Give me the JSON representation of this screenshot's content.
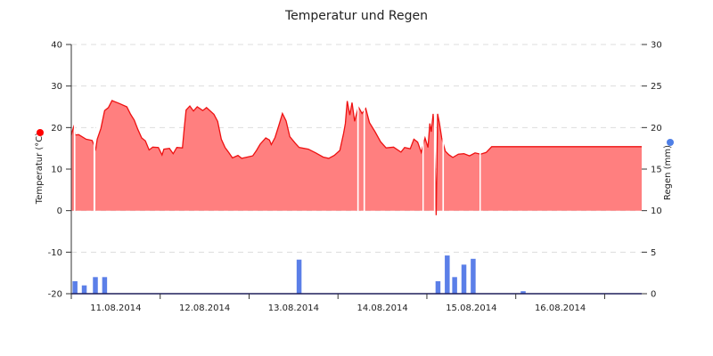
{
  "chart_data": {
    "type": "line+bar",
    "title": "Temperatur und Regen",
    "x_ticks": [
      "11.08.2014",
      "12.08.2014",
      "13.08.2014",
      "14.08.2014",
      "15.08.2014",
      "16.08.2014"
    ],
    "x_range_hours": [
      0,
      154
    ],
    "y_left": {
      "label": "Temperatur (°C)",
      "ticks": [
        "40",
        "30",
        "20",
        "10",
        "0",
        "-10",
        "-20"
      ],
      "range": [
        -20,
        40
      ],
      "marker_color": "#ff0000"
    },
    "y_right": {
      "label": "Regen (mm)",
      "ticks": [
        "30",
        "25",
        "20",
        "15",
        "10",
        "5",
        "0"
      ],
      "range": [
        0,
        30
      ],
      "marker_color": "#4f7fe6"
    },
    "grid": "horizontal-dashed",
    "series": [
      {
        "type": "area",
        "color": "#ee1111",
        "fill": "#ff7f7f",
        "points": [
          [
            0,
            18.2
          ],
          [
            0.4,
            19.5
          ],
          [
            0.8,
            20.6
          ],
          [
            1.0,
            18.2
          ],
          [
            2.0,
            18.3
          ],
          [
            4.0,
            17.2
          ],
          [
            5.6,
            16.9
          ],
          [
            6.6,
            14.8
          ],
          [
            7.0,
            17.2
          ],
          [
            8.0,
            19.8
          ],
          [
            9.0,
            24.1
          ],
          [
            10.0,
            24.8
          ],
          [
            11.0,
            26.5
          ],
          [
            13.0,
            25.8
          ],
          [
            15.0,
            25.0
          ],
          [
            16.0,
            23.2
          ],
          [
            17.0,
            21.8
          ],
          [
            18.0,
            19.5
          ],
          [
            19.0,
            17.5
          ],
          [
            20.0,
            16.8
          ],
          [
            21.0,
            14.6
          ],
          [
            22.0,
            15.3
          ],
          [
            23.5,
            15.2
          ],
          [
            24.5,
            13.4
          ],
          [
            25.0,
            14.8
          ],
          [
            26.5,
            15.0
          ],
          [
            27.5,
            13.7
          ],
          [
            28.5,
            15.2
          ],
          [
            30.0,
            15.1
          ],
          [
            30.5,
            20.0
          ],
          [
            31.0,
            24.2
          ],
          [
            32.0,
            25.2
          ],
          [
            33.0,
            24.0
          ],
          [
            34.0,
            25.0
          ],
          [
            35.5,
            24.1
          ],
          [
            36.5,
            24.8
          ],
          [
            38.5,
            23.2
          ],
          [
            39.5,
            21.5
          ],
          [
            40.5,
            17.2
          ],
          [
            41.5,
            15.2
          ],
          [
            42.5,
            14.0
          ],
          [
            43.5,
            12.7
          ],
          [
            45.0,
            13.3
          ],
          [
            46.0,
            12.6
          ],
          [
            47.5,
            12.9
          ],
          [
            49.0,
            13.2
          ],
          [
            50.0,
            14.5
          ],
          [
            51.0,
            16.0
          ],
          [
            52.5,
            17.5
          ],
          [
            53.5,
            17.0
          ],
          [
            54.0,
            15.9
          ],
          [
            55.0,
            17.6
          ],
          [
            56.0,
            20.4
          ],
          [
            57.0,
            23.4
          ],
          [
            58.0,
            21.6
          ],
          [
            59.0,
            17.8
          ],
          [
            60.5,
            16.2
          ],
          [
            61.5,
            15.2
          ],
          [
            64.0,
            14.8
          ],
          [
            66.0,
            13.9
          ],
          [
            68.0,
            12.9
          ],
          [
            69.5,
            12.6
          ],
          [
            71.0,
            13.3
          ],
          [
            72.5,
            14.5
          ],
          [
            73.5,
            18.6
          ],
          [
            74.0,
            21.0
          ],
          [
            74.5,
            26.4
          ],
          [
            75.2,
            23.0
          ],
          [
            75.8,
            26.0
          ],
          [
            76.5,
            21.5
          ],
          [
            77.5,
            25.0
          ],
          [
            78.5,
            23.4
          ],
          [
            79.5,
            24.6
          ],
          [
            80.5,
            21.2
          ],
          [
            82.0,
            19.0
          ],
          [
            83.5,
            16.6
          ],
          [
            85.0,
            15.1
          ],
          [
            87.0,
            15.3
          ],
          [
            89.0,
            14.1
          ],
          [
            90.0,
            15.2
          ],
          [
            91.5,
            14.9
          ],
          [
            92.5,
            17.2
          ],
          [
            93.5,
            16.5
          ],
          [
            94.5,
            14.0
          ],
          [
            95.5,
            17.5
          ],
          [
            96.3,
            15.2
          ],
          [
            96.8,
            21.0
          ],
          [
            97.2,
            19.0
          ],
          [
            97.7,
            23.3
          ],
          [
            98.0,
            20.0
          ],
          [
            98.5,
            -1.1
          ],
          [
            98.9,
            23.3
          ],
          [
            99.4,
            21.0
          ],
          [
            100.0,
            17.5
          ],
          [
            101.0,
            14.3
          ],
          [
            102.0,
            13.4
          ],
          [
            103.0,
            12.8
          ],
          [
            104.5,
            13.6
          ],
          [
            106.0,
            13.7
          ],
          [
            107.5,
            13.2
          ],
          [
            109.0,
            13.9
          ],
          [
            110.5,
            13.6
          ],
          [
            112.0,
            14.0
          ],
          [
            113.5,
            15.4
          ],
          [
            154.0,
            15.4
          ]
        ],
        "gaps": [
          [
            0.7,
            1.1
          ],
          [
            6.0,
            6.5
          ],
          [
            77.2,
            77.6
          ],
          [
            78.9,
            79.3
          ],
          [
            94.8,
            95.1
          ],
          [
            97.9,
            98.3
          ],
          [
            100.2,
            100.6
          ],
          [
            110.2,
            110.5
          ]
        ]
      },
      {
        "type": "bar",
        "color": "#5b7fe8",
        "axis": "right",
        "bars": [
          [
            1.0,
            1.5
          ],
          [
            3.5,
            1.0
          ],
          [
            6.5,
            2.0
          ],
          [
            9.0,
            2.0
          ],
          [
            61.5,
            4.1
          ],
          [
            99.0,
            1.5
          ],
          [
            101.5,
            4.6
          ],
          [
            103.5,
            2.0
          ],
          [
            106.0,
            3.5
          ],
          [
            108.5,
            4.2
          ],
          [
            122.0,
            0.3
          ]
        ]
      }
    ]
  }
}
